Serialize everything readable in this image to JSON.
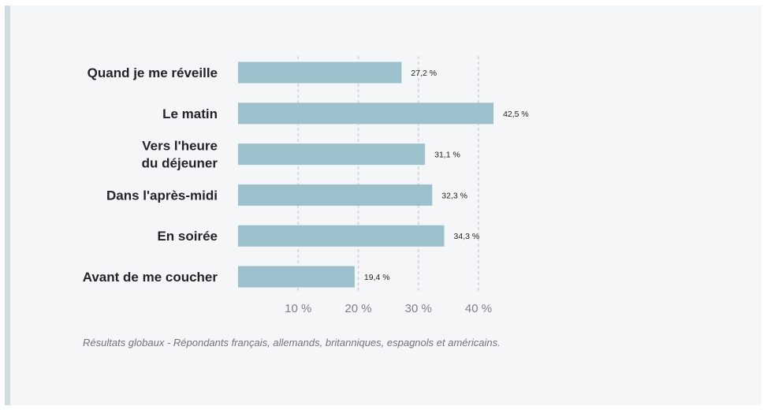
{
  "colors": {
    "bar": "#9dc1cc",
    "grid": "#d4d8dd",
    "accent": "#cfdde3"
  },
  "chart_data": {
    "type": "bar",
    "orientation": "horizontal",
    "categories": [
      [
        "Quand je me réveille"
      ],
      [
        "Le matin"
      ],
      [
        "Vers l'heure",
        "du déjeuner"
      ],
      [
        "Dans l'après-midi"
      ],
      [
        "En soirée"
      ],
      [
        "Avant de me coucher"
      ]
    ],
    "values": [
      27.2,
      42.5,
      31.1,
      32.3,
      34.3,
      19.4
    ],
    "value_labels": [
      "27,2 %",
      "42,5 %",
      "31,1 %",
      "32,3 %",
      "34,3 %",
      "19,4 %"
    ],
    "xticks": [
      10,
      20,
      30,
      40
    ],
    "xtick_labels": [
      "10 %",
      "20 %",
      "30 %",
      "40 %"
    ],
    "xlim": [
      0,
      40
    ],
    "grid": true,
    "title": "",
    "xlabel": "",
    "ylabel": ""
  },
  "footnote": "Résultats globaux - Répondants français, allemands, britanniques, espagnols et américains."
}
